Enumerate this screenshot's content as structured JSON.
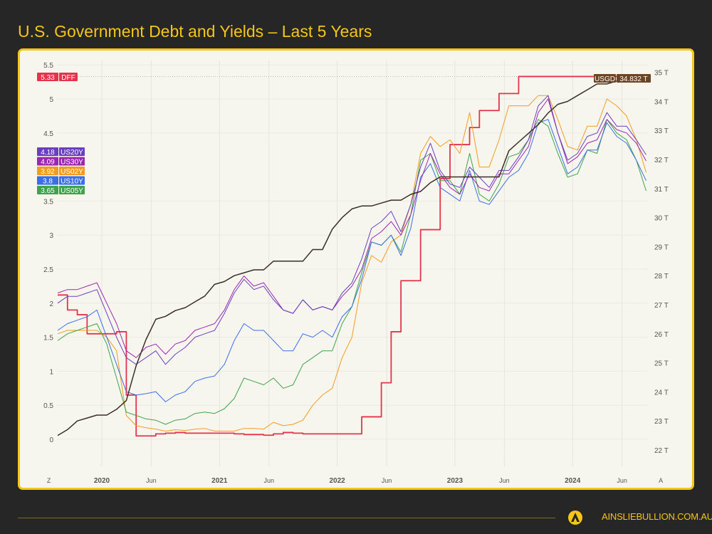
{
  "title": "U.S. Government Debt and Yields – Last 5 Years",
  "footer": {
    "site": "AINSLIEBULLION.COM.AU"
  },
  "chart_data": {
    "type": "line",
    "title": "U.S. Government Debt and Yields – Last 5 Years",
    "grid": true,
    "x_ticks": [
      {
        "label": "Z",
        "t": 2019.55,
        "bold": false
      },
      {
        "label": "2020",
        "t": 2020.0,
        "bold": true
      },
      {
        "label": "Jun",
        "t": 2020.42,
        "bold": false
      },
      {
        "label": "2021",
        "t": 2021.0,
        "bold": true
      },
      {
        "label": "Jun",
        "t": 2021.42,
        "bold": false
      },
      {
        "label": "2022",
        "t": 2022.0,
        "bold": true
      },
      {
        "label": "Jun",
        "t": 2022.42,
        "bold": false
      },
      {
        "label": "2023",
        "t": 2023.0,
        "bold": true
      },
      {
        "label": "Jun",
        "t": 2023.42,
        "bold": false
      },
      {
        "label": "2024",
        "t": 2024.0,
        "bold": true
      },
      {
        "label": "Jun",
        "t": 2024.42,
        "bold": false
      },
      {
        "label": "A",
        "t": 2024.75,
        "bold": false
      }
    ],
    "y_left": {
      "ticks": [
        "0",
        "0.5",
        "1",
        "1.5",
        "2",
        "2.5",
        "3",
        "3.5",
        "4.5",
        "5",
        "5.5"
      ],
      "range": [
        0,
        5.5
      ],
      "unit": "%"
    },
    "y_right": {
      "ticks": [
        "22 T",
        "23 T",
        "24 T",
        "25 T",
        "26 T",
        "27 T",
        "28 T",
        "29 T",
        "30 T",
        "31 T",
        "32 T",
        "33 T",
        "34 T",
        "35 T"
      ],
      "range": [
        22,
        35
      ],
      "unit": "T"
    },
    "x": [
      "2019-08",
      "2019-09",
      "2019-10",
      "2019-11",
      "2019-12",
      "2020-01",
      "2020-02",
      "2020-03",
      "2020-04",
      "2020-05",
      "2020-06",
      "2020-07",
      "2020-08",
      "2020-09",
      "2020-10",
      "2020-11",
      "2020-12",
      "2021-01",
      "2021-02",
      "2021-03",
      "2021-04",
      "2021-05",
      "2021-06",
      "2021-07",
      "2021-08",
      "2021-09",
      "2021-10",
      "2021-11",
      "2021-12",
      "2022-01",
      "2022-02",
      "2022-03",
      "2022-04",
      "2022-05",
      "2022-06",
      "2022-07",
      "2022-08",
      "2022-09",
      "2022-10",
      "2022-11",
      "2022-12",
      "2023-01",
      "2023-02",
      "2023-03",
      "2023-04",
      "2023-05",
      "2023-06",
      "2023-07",
      "2023-08",
      "2023-09",
      "2023-10",
      "2023-11",
      "2023-12",
      "2024-01",
      "2024-02",
      "2024-03",
      "2024-04",
      "2024-05",
      "2024-06",
      "2024-07",
      "2024-08"
    ],
    "series": [
      {
        "name": "DFF",
        "axis": "left",
        "color": "#e5334b",
        "last": "5.33",
        "width": 1.8,
        "values": [
          2.12,
          1.9,
          1.83,
          1.55,
          1.55,
          1.55,
          1.58,
          0.65,
          0.05,
          0.05,
          0.08,
          0.09,
          0.1,
          0.09,
          0.09,
          0.09,
          0.09,
          0.09,
          0.08,
          0.07,
          0.07,
          0.06,
          0.08,
          0.1,
          0.09,
          0.08,
          0.08,
          0.08,
          0.08,
          0.08,
          0.08,
          0.33,
          0.33,
          0.83,
          1.58,
          2.33,
          2.33,
          3.08,
          3.08,
          3.83,
          4.33,
          4.33,
          4.58,
          4.83,
          4.83,
          5.08,
          5.08,
          5.33,
          5.33,
          5.33,
          5.33,
          5.33,
          5.33,
          5.33,
          5.33,
          5.33,
          5.33,
          5.33,
          5.33,
          5.33,
          5.33
        ]
      },
      {
        "name": "US02Y",
        "axis": "left",
        "color": "#f29c1f",
        "last": "3.92",
        "width": 1,
        "values": [
          1.55,
          1.6,
          1.6,
          1.6,
          1.6,
          1.5,
          1.3,
          0.35,
          0.2,
          0.17,
          0.15,
          0.12,
          0.14,
          0.13,
          0.15,
          0.16,
          0.12,
          0.12,
          0.12,
          0.16,
          0.16,
          0.15,
          0.25,
          0.2,
          0.22,
          0.28,
          0.5,
          0.65,
          0.75,
          1.2,
          1.5,
          2.3,
          2.7,
          2.6,
          2.9,
          3.0,
          3.45,
          4.2,
          4.45,
          4.3,
          4.4,
          4.2,
          4.8,
          4.0,
          4.0,
          4.4,
          4.9,
          4.9,
          4.9,
          5.05,
          5.05,
          4.7,
          4.3,
          4.25,
          4.6,
          4.6,
          5.0,
          4.9,
          4.75,
          4.4,
          3.92
        ]
      },
      {
        "name": "US05Y",
        "axis": "left",
        "color": "#3ea34a",
        "last": "3.65",
        "width": 1,
        "values": [
          1.45,
          1.55,
          1.6,
          1.65,
          1.7,
          1.4,
          0.9,
          0.4,
          0.35,
          0.3,
          0.28,
          0.22,
          0.28,
          0.3,
          0.38,
          0.4,
          0.38,
          0.45,
          0.6,
          0.9,
          0.85,
          0.8,
          0.9,
          0.75,
          0.8,
          1.1,
          1.2,
          1.3,
          1.3,
          1.7,
          1.95,
          2.45,
          2.9,
          2.85,
          3.0,
          2.75,
          3.3,
          4.1,
          4.2,
          3.8,
          3.8,
          3.6,
          4.2,
          3.6,
          3.5,
          3.75,
          4.15,
          4.2,
          4.4,
          4.7,
          4.6,
          4.2,
          3.85,
          3.9,
          4.25,
          4.2,
          4.7,
          4.5,
          4.4,
          4.1,
          3.65
        ]
      },
      {
        "name": "US10Y",
        "axis": "left",
        "color": "#3a6ee8",
        "last": "3.8",
        "width": 1,
        "values": [
          1.6,
          1.7,
          1.75,
          1.8,
          1.9,
          1.5,
          1.1,
          0.7,
          0.65,
          0.67,
          0.7,
          0.55,
          0.65,
          0.7,
          0.85,
          0.9,
          0.93,
          1.1,
          1.45,
          1.7,
          1.6,
          1.6,
          1.45,
          1.3,
          1.3,
          1.55,
          1.5,
          1.6,
          1.5,
          1.8,
          1.95,
          2.35,
          2.9,
          2.85,
          3.0,
          2.7,
          3.1,
          3.85,
          4.05,
          3.7,
          3.6,
          3.5,
          3.95,
          3.5,
          3.45,
          3.65,
          3.85,
          3.95,
          4.2,
          4.65,
          4.7,
          4.3,
          3.9,
          4.0,
          4.25,
          4.25,
          4.65,
          4.45,
          4.35,
          4.1,
          3.8
        ]
      },
      {
        "name": "US30Y",
        "axis": "left",
        "color": "#9c27b0",
        "last": "4.09",
        "width": 1,
        "values": [
          2.15,
          2.2,
          2.2,
          2.25,
          2.3,
          2.0,
          1.7,
          1.3,
          1.2,
          1.35,
          1.4,
          1.25,
          1.4,
          1.45,
          1.6,
          1.65,
          1.7,
          1.9,
          2.2,
          2.4,
          2.25,
          2.3,
          2.1,
          1.9,
          1.85,
          2.05,
          1.9,
          1.95,
          1.9,
          2.1,
          2.25,
          2.5,
          2.95,
          3.05,
          3.2,
          3.0,
          3.3,
          3.8,
          4.2,
          3.9,
          3.7,
          3.6,
          3.9,
          3.7,
          3.65,
          3.9,
          3.9,
          4.1,
          4.3,
          4.8,
          5.0,
          4.5,
          4.05,
          4.15,
          4.35,
          4.4,
          4.7,
          4.55,
          4.5,
          4.35,
          4.09
        ]
      },
      {
        "name": "US20Y",
        "axis": "left",
        "color": "#6a3fbf",
        "last": "4.18",
        "width": 1,
        "values": [
          2.0,
          2.1,
          2.1,
          2.15,
          2.2,
          1.85,
          1.5,
          1.2,
          1.1,
          1.2,
          1.3,
          1.1,
          1.25,
          1.35,
          1.5,
          1.55,
          1.6,
          1.85,
          2.15,
          2.35,
          2.2,
          2.25,
          2.05,
          1.9,
          1.85,
          2.05,
          1.9,
          1.95,
          1.9,
          2.15,
          2.3,
          2.65,
          3.1,
          3.2,
          3.35,
          3.05,
          3.45,
          4.0,
          4.35,
          3.95,
          3.75,
          3.7,
          4.0,
          3.85,
          3.7,
          3.95,
          3.95,
          4.15,
          4.4,
          4.9,
          5.05,
          4.5,
          4.1,
          4.2,
          4.45,
          4.5,
          4.8,
          4.6,
          4.6,
          4.4,
          4.18
        ]
      },
      {
        "name": "USGD",
        "axis": "right",
        "color": "#3a2e25",
        "badge_color": "#6b4424",
        "last": "34.832 T",
        "width": 1.5,
        "values": [
          22.5,
          22.7,
          23.0,
          23.1,
          23.2,
          23.2,
          23.4,
          23.7,
          24.9,
          25.8,
          26.5,
          26.6,
          26.8,
          26.9,
          27.1,
          27.3,
          27.7,
          27.8,
          28.0,
          28.1,
          28.2,
          28.2,
          28.5,
          28.5,
          28.5,
          28.5,
          28.9,
          28.9,
          29.6,
          30.0,
          30.3,
          30.4,
          30.4,
          30.5,
          30.6,
          30.6,
          30.8,
          30.9,
          31.2,
          31.4,
          31.4,
          31.4,
          31.4,
          31.4,
          31.4,
          31.4,
          32.3,
          32.6,
          32.9,
          33.2,
          33.6,
          33.9,
          34.0,
          34.2,
          34.4,
          34.6,
          34.6,
          34.7,
          34.8,
          34.83,
          34.832
        ]
      }
    ],
    "left_badges": [
      "US20Y",
      "US30Y",
      "US02Y",
      "US10Y",
      "US05Y"
    ]
  }
}
